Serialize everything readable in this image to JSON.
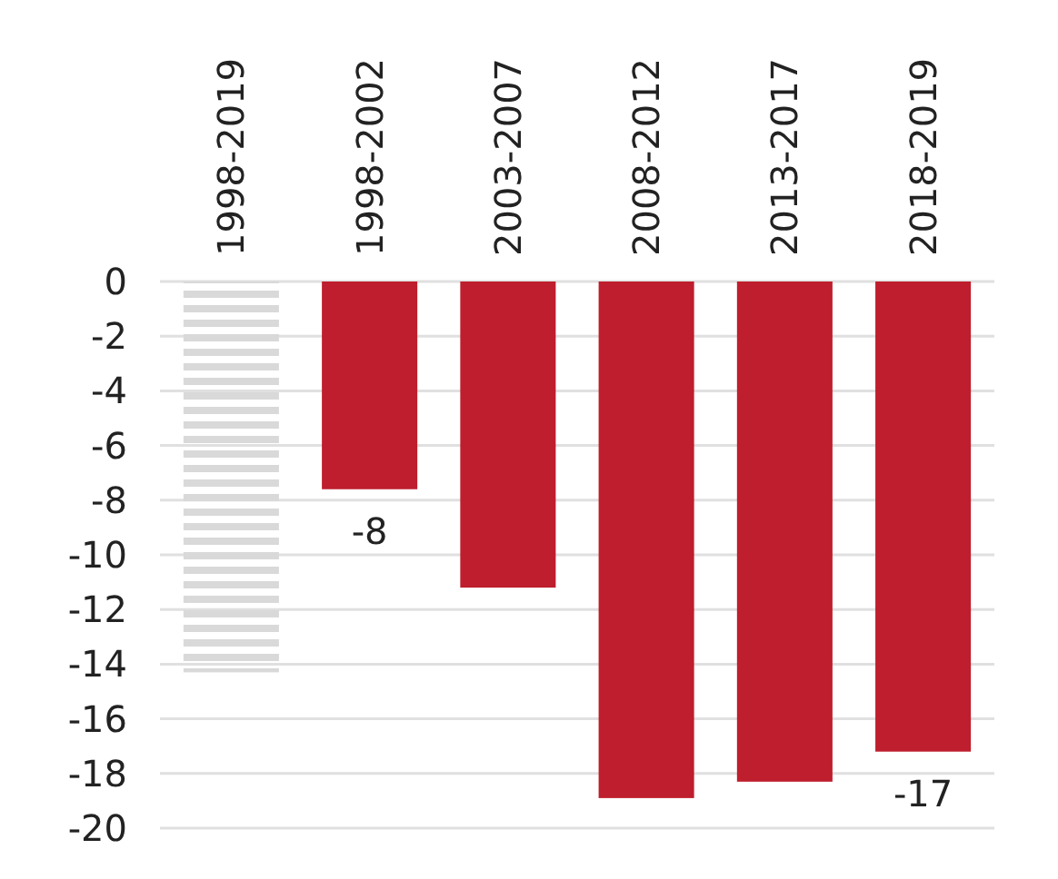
{
  "chart_data": {
    "type": "bar",
    "categories": [
      "1998-2019",
      "1998-2002",
      "2003-2007",
      "2008-2012",
      "2013-2017",
      "2018-2019"
    ],
    "values": [
      -14.3,
      -7.6,
      -11.2,
      -18.9,
      -18.3,
      -17.2
    ],
    "colors": [
      "#d9d9d9",
      "#be1e2d",
      "#be1e2d",
      "#be1e2d",
      "#be1e2d",
      "#be1e2d"
    ],
    "value_labels": [
      null,
      "-8",
      null,
      null,
      null,
      "-17"
    ],
    "ylim": [
      -20,
      0
    ],
    "yticks": [
      0,
      -2,
      -4,
      -6,
      -8,
      -10,
      -12,
      -14,
      -16,
      -18,
      -20
    ],
    "grid": "y"
  }
}
